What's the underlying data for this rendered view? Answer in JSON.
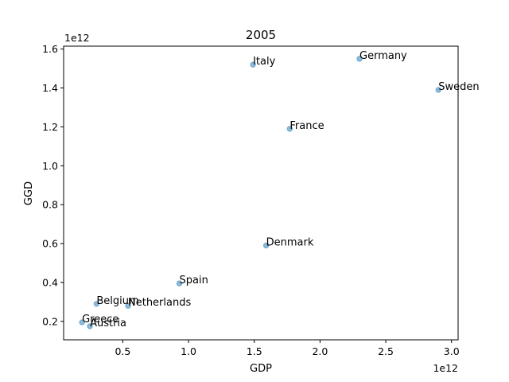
{
  "chart_data": {
    "type": "scatter",
    "title": "2005",
    "xlabel": "GDP",
    "ylabel": "GGD",
    "x_offset_label": "1e12",
    "y_offset_label": "1e12",
    "xlim": [
      0.05,
      3.05
    ],
    "ylim": [
      0.105,
      1.615
    ],
    "xticks": [
      0.5,
      1.0,
      1.5,
      2.0,
      2.5,
      3.0
    ],
    "xtick_labels": [
      "0.5",
      "1.0",
      "1.5",
      "2.0",
      "2.5",
      "3.0"
    ],
    "yticks": [
      0.2,
      0.4,
      0.6,
      0.8,
      1.0,
      1.2,
      1.4,
      1.6
    ],
    "ytick_labels": [
      "0.2",
      "0.4",
      "0.6",
      "0.8",
      "1.0",
      "1.2",
      "1.4",
      "1.6"
    ],
    "grid": false,
    "marker_color": "#1f77b4",
    "points": [
      {
        "label": "Italy",
        "x": 1.49,
        "y": 1.52
      },
      {
        "label": "Germany",
        "x": 2.3,
        "y": 1.55
      },
      {
        "label": "Sweden",
        "x": 2.9,
        "y": 1.39
      },
      {
        "label": "France",
        "x": 1.77,
        "y": 1.19
      },
      {
        "label": "Denmark",
        "x": 1.59,
        "y": 0.59
      },
      {
        "label": "Spain",
        "x": 0.93,
        "y": 0.395
      },
      {
        "label": "Belgium",
        "x": 0.3,
        "y": 0.29
      },
      {
        "label": "Netherlands",
        "x": 0.54,
        "y": 0.28
      },
      {
        "label": "Greece",
        "x": 0.19,
        "y": 0.195
      },
      {
        "label": "Austria",
        "x": 0.25,
        "y": 0.175
      }
    ]
  }
}
